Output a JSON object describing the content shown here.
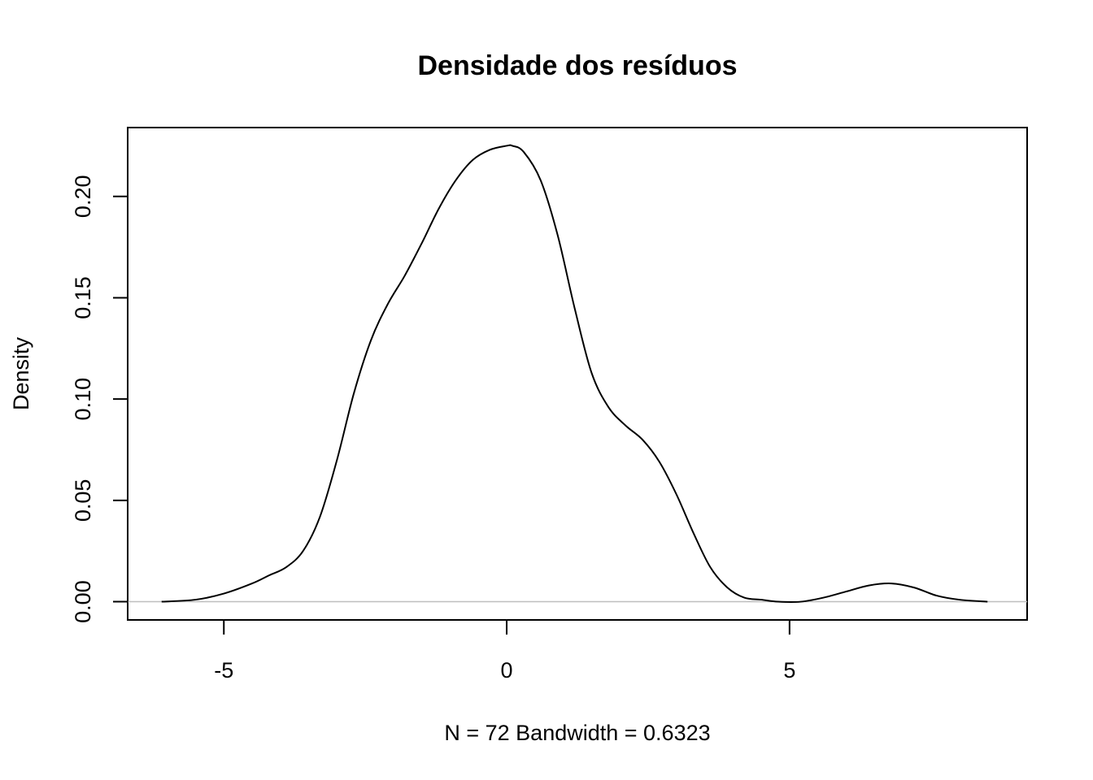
{
  "chart_data": {
    "type": "line",
    "title": "Densidade dos resíduos",
    "xlabel": "N = 72   Bandwidth = 0.6323",
    "ylabel": "Density",
    "xlim": [
      -6.7,
      9.2
    ],
    "ylim": [
      -0.009,
      0.234
    ],
    "x_ticks": [
      -5,
      0,
      5
    ],
    "x_tick_labels": [
      "-5",
      "0",
      "5"
    ],
    "y_ticks": [
      0.0,
      0.05,
      0.1,
      0.15,
      0.2
    ],
    "y_tick_labels": [
      "0.00",
      "0.05",
      "0.10",
      "0.15",
      "0.20"
    ],
    "grid": false,
    "legend": "none",
    "reference_line_y": 0,
    "series": [
      {
        "x": [
          -6.1,
          -5.5,
          -5.0,
          -4.5,
          -4.2,
          -3.9,
          -3.6,
          -3.3,
          -3.0,
          -2.7,
          -2.4,
          -2.1,
          -1.8,
          -1.5,
          -1.2,
          -0.9,
          -0.6,
          -0.3,
          0.0,
          0.1,
          0.3,
          0.6,
          0.9,
          1.2,
          1.5,
          1.8,
          2.1,
          2.4,
          2.7,
          3.0,
          3.3,
          3.6,
          3.9,
          4.2,
          4.5,
          4.8,
          5.2,
          5.6,
          6.0,
          6.4,
          6.8,
          7.2,
          7.6,
          8.0,
          8.5
        ],
        "y": [
          0.0,
          0.001,
          0.004,
          0.009,
          0.013,
          0.017,
          0.025,
          0.042,
          0.07,
          0.103,
          0.129,
          0.147,
          0.161,
          0.177,
          0.194,
          0.208,
          0.218,
          0.223,
          0.225,
          0.225,
          0.222,
          0.208,
          0.181,
          0.145,
          0.113,
          0.096,
          0.087,
          0.08,
          0.069,
          0.053,
          0.034,
          0.017,
          0.007,
          0.002,
          0.001,
          0.0,
          0.0,
          0.002,
          0.005,
          0.008,
          0.009,
          0.007,
          0.003,
          0.001,
          0.0
        ]
      }
    ]
  }
}
